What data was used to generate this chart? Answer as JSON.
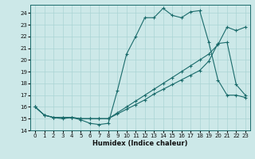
{
  "xlabel": "Humidex (Indice chaleur)",
  "bg_color": "#cce8e8",
  "line_color": "#1a6b6b",
  "grid_color": "#aad4d4",
  "xlim": [
    -0.5,
    23.5
  ],
  "ylim": [
    14,
    24.7
  ],
  "xticks": [
    0,
    1,
    2,
    3,
    4,
    5,
    6,
    7,
    8,
    9,
    10,
    11,
    12,
    13,
    14,
    15,
    16,
    17,
    18,
    19,
    20,
    21,
    22,
    23
  ],
  "yticks": [
    14,
    15,
    16,
    17,
    18,
    19,
    20,
    21,
    22,
    23,
    24
  ],
  "line1_x": [
    0,
    1,
    2,
    3,
    4,
    5,
    6,
    7,
    8,
    9,
    10,
    11,
    12,
    13,
    14,
    15,
    16,
    17,
    18,
    19,
    20,
    21,
    22,
    23
  ],
  "line1_y": [
    16,
    15.3,
    15.1,
    15.0,
    15.1,
    14.9,
    14.6,
    14.5,
    14.6,
    17.4,
    20.5,
    22.0,
    23.6,
    23.6,
    24.4,
    23.8,
    23.6,
    24.1,
    24.2,
    21.5,
    18.3,
    17.0,
    17.0,
    16.8
  ],
  "line2_x": [
    0,
    1,
    2,
    3,
    4,
    5,
    6,
    7,
    8,
    9,
    10,
    11,
    12,
    13,
    14,
    15,
    16,
    17,
    18,
    19,
    20,
    21,
    22,
    23
  ],
  "line2_y": [
    16.0,
    15.3,
    15.1,
    15.1,
    15.1,
    15.0,
    15.0,
    15.0,
    15.0,
    15.4,
    15.8,
    16.2,
    16.6,
    17.1,
    17.5,
    17.9,
    18.3,
    18.7,
    19.1,
    19.9,
    21.4,
    21.5,
    17.9,
    17.0
  ],
  "line3_x": [
    0,
    1,
    2,
    3,
    4,
    5,
    6,
    7,
    8,
    9,
    10,
    11,
    12,
    13,
    14,
    15,
    16,
    17,
    18,
    19,
    20,
    21,
    22,
    23
  ],
  "line3_y": [
    16.0,
    15.3,
    15.1,
    15.1,
    15.1,
    15.0,
    15.0,
    15.0,
    15.0,
    15.5,
    16.0,
    16.5,
    17.0,
    17.5,
    18.0,
    18.5,
    19.0,
    19.5,
    20.0,
    20.5,
    21.3,
    22.8,
    22.5,
    22.8
  ]
}
